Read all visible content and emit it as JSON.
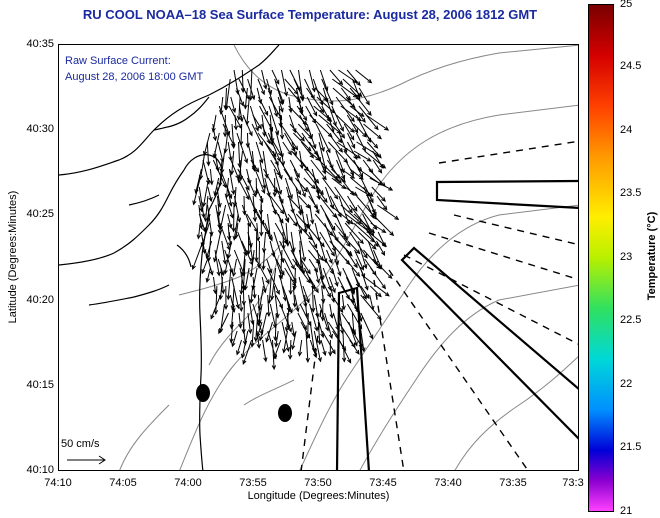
{
  "title": "RU COOL  NOAA–18  Sea Surface Temperature:  August 28, 2006 1812 GMT",
  "overlay": {
    "line1": "Raw Surface Current:",
    "line2": "August 28, 2006 18:00 GMT",
    "scale_label": "50 cm/s"
  },
  "axes": {
    "xlabel": "Longitude (Degrees:Minutes)",
    "ylabel": "Latitude (Degrees:Minutes)",
    "xticks": [
      "74:10",
      "74:05",
      "74:00",
      "73:55",
      "73:50",
      "73:45",
      "73:40",
      "73:35",
      "73:3"
    ],
    "yticks": [
      "40:35",
      "40:30",
      "40:25",
      "40:20",
      "40:15",
      "40:10"
    ]
  },
  "colorbar": {
    "label": "Temperature (°C)",
    "ticks": [
      "25",
      "24.5",
      "24",
      "23.5",
      "23",
      "22.5",
      "22",
      "21.5",
      "21"
    ],
    "min": 21,
    "max": 25
  },
  "colors": {
    "title": "#1a2aa0",
    "coastline": "#000000",
    "bathymetry": "#888888"
  }
}
